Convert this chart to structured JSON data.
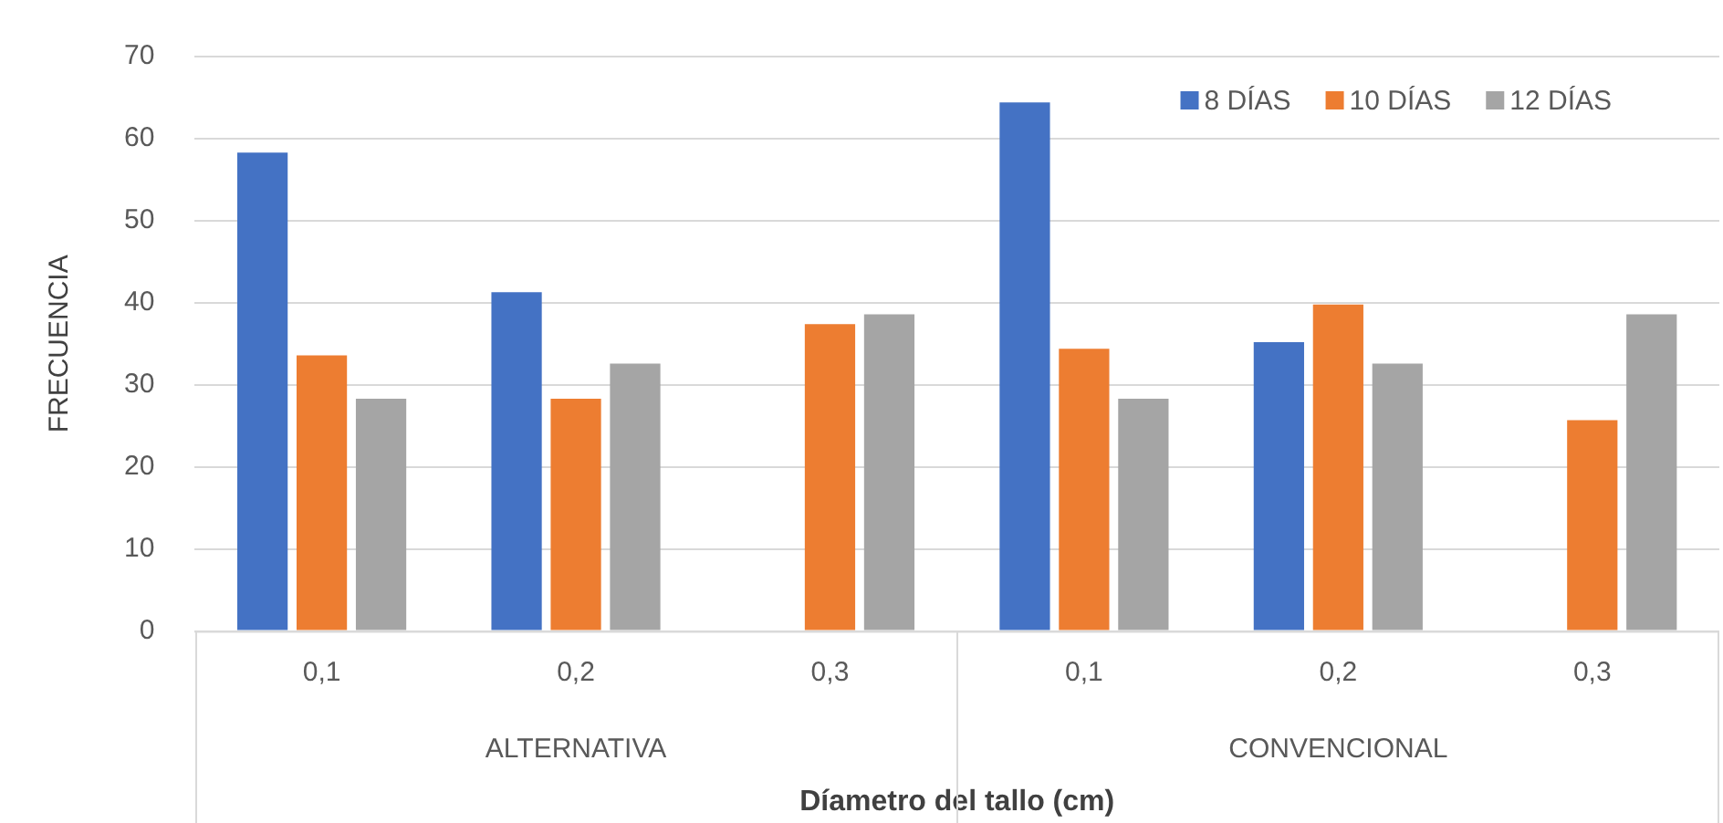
{
  "chart_data": {
    "type": "bar",
    "xlabel": "Díametro del tallo (cm)",
    "ylabel": "FRECUENCIA",
    "categories": [
      "0,1",
      "0,2",
      "0,3",
      "0,1",
      "0,2",
      "0,3"
    ],
    "annotations": [
      "ALTERNATIVA",
      "CONVENCIONAL"
    ],
    "series": [
      {
        "name": "8 DÍAS",
        "color": "#4472c4",
        "values": [
          58.3,
          41.3,
          0,
          64.4,
          35.2,
          0
        ]
      },
      {
        "name": "10 DÍAS",
        "color": "#ed7d31",
        "values": [
          33.6,
          28.3,
          37.4,
          34.4,
          39.8,
          25.7
        ]
      },
      {
        "name": "12 DÍAS",
        "color": "#a5a5a5",
        "values": [
          28.3,
          32.6,
          38.6,
          28.3,
          32.6,
          38.6
        ]
      }
    ],
    "ylim": [
      0,
      70
    ],
    "yticks": [
      0,
      10,
      20,
      30,
      40,
      50,
      60,
      70
    ],
    "grid": "y",
    "legend": "top right"
  }
}
